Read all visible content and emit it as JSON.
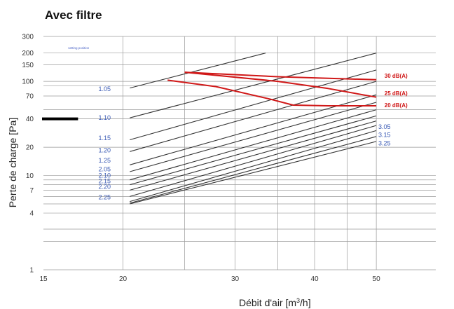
{
  "chart_data": {
    "type": "line",
    "title": "Avec filtre",
    "xlabel": "Débit d'air [m",
    "xlabel_sup": "3",
    "xlabel_tail": "/h]",
    "ylabel": "Perte de charge [Pa]",
    "x_scale": "log",
    "y_scale": "log",
    "xlim": [
      15,
      62
    ],
    "ylim": [
      1,
      300
    ],
    "x_ticks": [
      15,
      20,
      30,
      40,
      50
    ],
    "x_gridlines": [
      20,
      25,
      30,
      35,
      40,
      45,
      50
    ],
    "y_ticks": [
      1,
      4,
      7,
      10,
      20,
      40,
      70,
      100,
      150,
      200,
      300
    ],
    "y_gridlines": [
      2,
      2.7,
      4,
      5,
      6,
      7,
      8,
      9,
      10,
      20,
      40,
      50,
      70,
      90,
      100,
      150,
      200,
      300
    ],
    "grid": true,
    "annotation": "setting position",
    "marker": {
      "y": 40,
      "x_range": [
        15,
        17
      ]
    },
    "series": [
      {
        "name": "1.05",
        "color": "#333333",
        "x": [
          20.5,
          33.5
        ],
        "y": [
          85,
          200
        ]
      },
      {
        "name": "1.10",
        "color": "#333333",
        "x": [
          20.5,
          50
        ],
        "y": [
          41,
          200
        ]
      },
      {
        "name": "1.15",
        "color": "#333333",
        "x": [
          20.5,
          50
        ],
        "y": [
          24,
          132
        ]
      },
      {
        "name": "1.20",
        "color": "#333333",
        "x": [
          20.5,
          50
        ],
        "y": [
          18,
          100
        ]
      },
      {
        "name": "1.25",
        "color": "#333333",
        "x": [
          20.5,
          50
        ],
        "y": [
          13,
          72
        ]
      },
      {
        "name": "2.05",
        "color": "#333333",
        "x": [
          20.5,
          50
        ],
        "y": [
          11,
          60
        ]
      },
      {
        "name": "2.10",
        "color": "#333333",
        "x": [
          20.5,
          50
        ],
        "y": [
          9,
          50
        ]
      },
      {
        "name": "2.15",
        "color": "#333333",
        "x": [
          20.5,
          50
        ],
        "y": [
          8,
          43
        ]
      },
      {
        "name": "2.20",
        "color": "#333333",
        "x": [
          20.5,
          50
        ],
        "y": [
          7,
          38
        ]
      },
      {
        "name": "2.25",
        "color": "#333333",
        "x": [
          20.5,
          50
        ],
        "y": [
          6,
          34
        ]
      },
      {
        "name": "3.05",
        "color": "#333333",
        "x": [
          20.5,
          50
        ],
        "y": [
          5.3,
          30
        ]
      },
      {
        "name": "3.15",
        "color": "#333333",
        "x": [
          20.5,
          50
        ],
        "y": [
          5.1,
          26
        ]
      },
      {
        "name": "3.25",
        "color": "#333333",
        "x": [
          20.5,
          50
        ],
        "y": [
          5,
          23
        ]
      },
      {
        "name": "30 dB(A)",
        "color": "#d01818",
        "x": [
          25,
          35,
          50
        ],
        "y": [
          125,
          112,
          104
        ]
      },
      {
        "name": "25 dB(A)",
        "color": "#d01818",
        "x": [
          25,
          35,
          42,
          50
        ],
        "y": [
          125,
          100,
          84,
          68
        ]
      },
      {
        "name": "20 dB(A)",
        "color": "#d01818",
        "x": [
          23.5,
          28,
          34,
          37,
          42,
          50
        ],
        "y": [
          103,
          88,
          65,
          56,
          55,
          55
        ]
      }
    ],
    "setting_labels": [
      {
        "text": "1.05",
        "x": 19,
        "y": 83
      },
      {
        "text": "1.10",
        "x": 19,
        "y": 41
      },
      {
        "text": "1.15",
        "x": 19,
        "y": 25
      },
      {
        "text": "1.20",
        "x": 19,
        "y": 18.5
      },
      {
        "text": "1.25",
        "x": 19,
        "y": 14.5
      },
      {
        "text": "2.05",
        "x": 19,
        "y": 11.7
      },
      {
        "text": "2.10",
        "x": 19,
        "y": 10
      },
      {
        "text": "2.15",
        "x": 19,
        "y": 8.7
      },
      {
        "text": "2.20",
        "x": 19,
        "y": 7.6
      },
      {
        "text": "2.25",
        "x": 19,
        "y": 5.9
      },
      {
        "text": "3.05",
        "x": 51.5,
        "y": 33
      },
      {
        "text": "3.15",
        "x": 51.5,
        "y": 27
      },
      {
        "text": "3.25",
        "x": 51.5,
        "y": 22
      }
    ],
    "dba_labels": [
      {
        "text": "30 dB(A)",
        "x": 51.5,
        "y": 115
      },
      {
        "text": "25 dB(A)",
        "x": 51.5,
        "y": 75
      },
      {
        "text": "20 dB(A)",
        "x": 51.5,
        "y": 56
      }
    ]
  }
}
